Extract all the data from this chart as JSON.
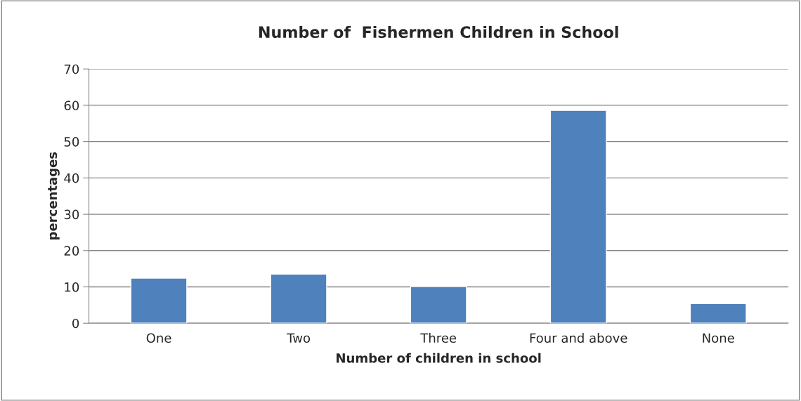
{
  "chart_data": {
    "type": "bar",
    "title": "Number of  Fishermen Children in School",
    "xlabel": "Number of children in school",
    "ylabel": "percentages",
    "categories": [
      "One",
      "Two",
      "Three",
      "Four and above",
      "None"
    ],
    "values": [
      12.4,
      13.5,
      10.1,
      58.6,
      5.4
    ],
    "color": "#4f81bd",
    "ylim": [
      0,
      70
    ],
    "yticks": [
      0,
      10,
      20,
      30,
      40,
      50,
      60,
      70
    ],
    "grid": "y",
    "legend": false
  }
}
